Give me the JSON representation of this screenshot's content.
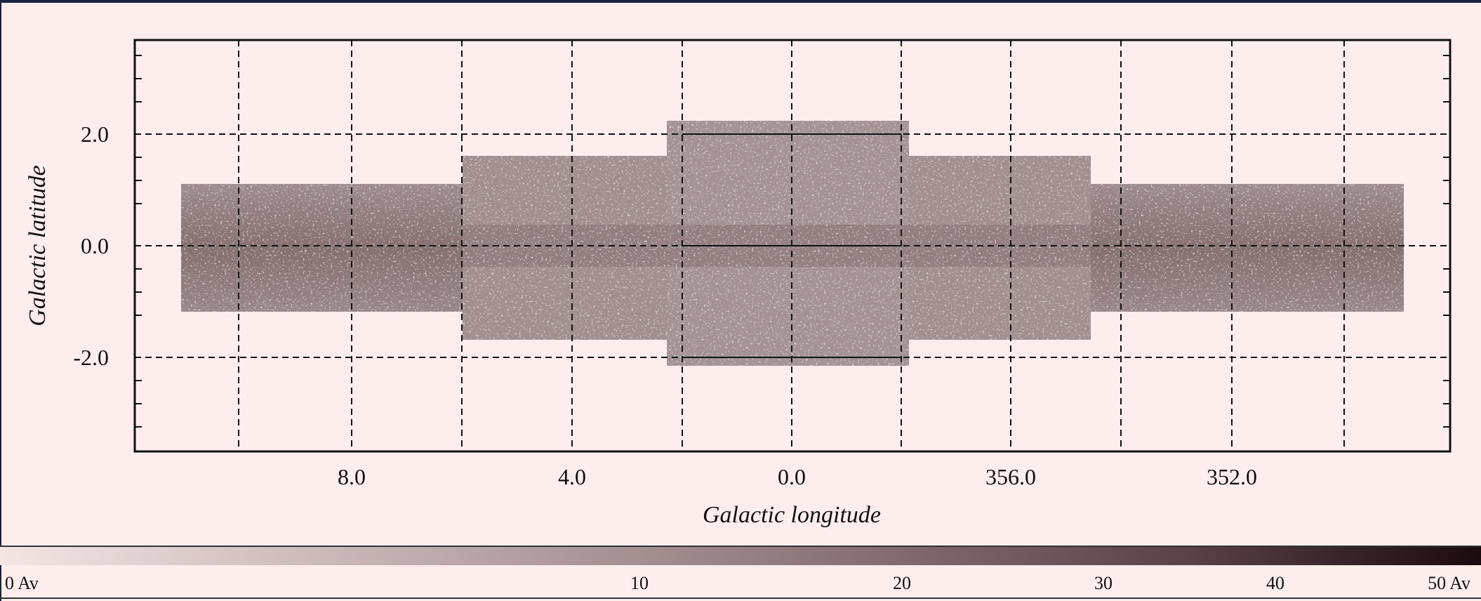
{
  "plot": {
    "x_label": "Galactic longitude",
    "y_label": "Galactic latitude",
    "x_ticks": [
      "8.0",
      "4.0",
      "0.0",
      "356.0",
      "352.0"
    ],
    "y_ticks": [
      "2.0",
      "0.0",
      "-2.0"
    ]
  },
  "colorbar": {
    "labels": [
      "0 Av",
      "10",
      "20",
      "30",
      "40",
      "50 Av"
    ]
  }
}
